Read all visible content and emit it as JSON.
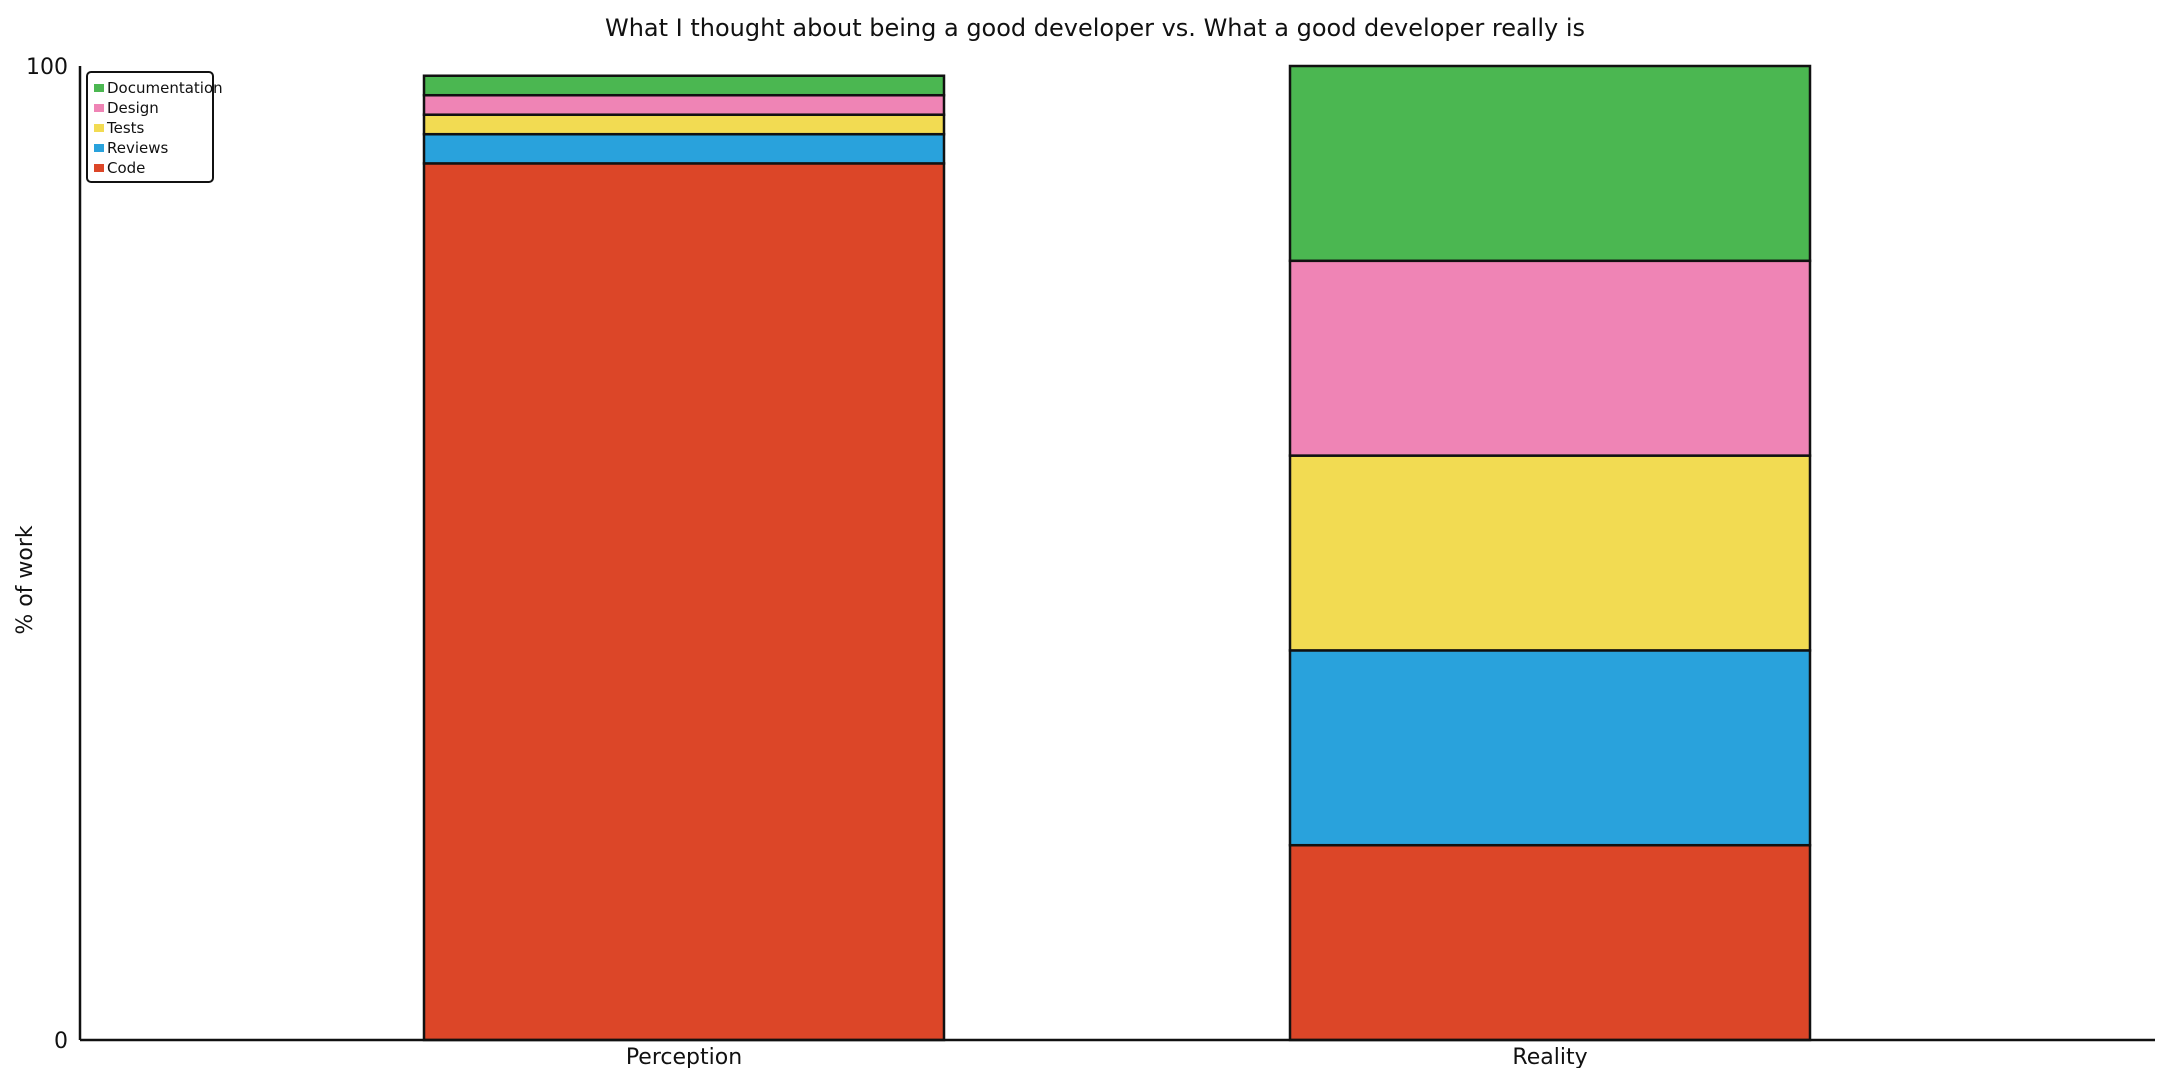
{
  "chart_data": {
    "type": "bar",
    "stacked": true,
    "title": "What I thought about being a good developer vs. What a good developer really is",
    "xlabel": "",
    "ylabel": "% of work",
    "ylim": [
      0,
      100
    ],
    "yticks": [
      "0",
      "100"
    ],
    "categories": [
      "Perception",
      "Reality"
    ],
    "series": [
      {
        "name": "Code",
        "color": "#dc4628",
        "values": [
          90,
          20
        ]
      },
      {
        "name": "Reviews",
        "color": "#29a2dc",
        "values": [
          3,
          20
        ]
      },
      {
        "name": "Tests",
        "color": "#f2db52",
        "values": [
          2,
          20
        ]
      },
      {
        "name": "Design",
        "color": "#ef84b5",
        "values": [
          2,
          20
        ]
      },
      {
        "name": "Documentation",
        "color": "#4bb751",
        "values": [
          2,
          20
        ]
      }
    ],
    "legend": {
      "position": "top-left",
      "order": [
        "Documentation",
        "Design",
        "Tests",
        "Reviews",
        "Code"
      ]
    },
    "grid": false
  }
}
